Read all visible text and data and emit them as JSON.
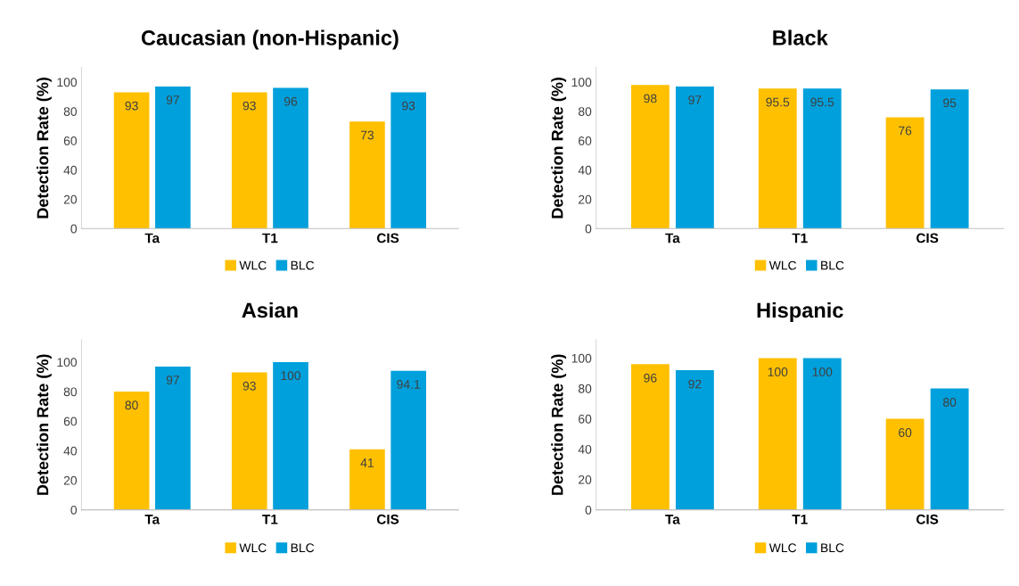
{
  "chart_data": [
    {
      "type": "bar",
      "title": "Caucasian (non-Hispanic)",
      "ylabel": "Detection Rate (%)",
      "categories": [
        "Ta",
        "T1",
        "CIS"
      ],
      "series": [
        {
          "name": "WLC",
          "color": "#ffc000",
          "values": [
            93,
            93,
            73
          ]
        },
        {
          "name": "BLC",
          "color": "#00a0dc",
          "values": [
            97,
            96,
            93
          ]
        }
      ],
      "ylim": [
        0,
        110
      ],
      "yticks": [
        0,
        20,
        40,
        60,
        80,
        100
      ],
      "grid": false,
      "legend": "bottom",
      "data_labels": true
    },
    {
      "type": "bar",
      "title": "Black",
      "ylabel": "Detection Rate (%)",
      "categories": [
        "Ta",
        "T1",
        "CIS"
      ],
      "series": [
        {
          "name": "WLC",
          "color": "#ffc000",
          "values": [
            98,
            95.5,
            76
          ]
        },
        {
          "name": "BLC",
          "color": "#00a0dc",
          "values": [
            97,
            95.5,
            95
          ]
        }
      ],
      "ylim": [
        0,
        110
      ],
      "yticks": [
        0,
        20,
        40,
        60,
        80,
        100
      ],
      "grid": false,
      "legend": "bottom",
      "data_labels": true
    },
    {
      "type": "bar",
      "title": "Asian",
      "ylabel": "Detection Rate (%)",
      "categories": [
        "Ta",
        "T1",
        "CIS"
      ],
      "series": [
        {
          "name": "WLC",
          "color": "#ffc000",
          "values": [
            80,
            93,
            41
          ]
        },
        {
          "name": "BLC",
          "color": "#00a0dc",
          "values": [
            97,
            100,
            94.1
          ]
        }
      ],
      "ylim": [
        0,
        115
      ],
      "yticks": [
        0,
        20,
        40,
        60,
        80,
        100
      ],
      "grid": false,
      "legend": "bottom",
      "data_labels": true
    },
    {
      "type": "bar",
      "title": "Hispanic",
      "ylabel": "Detection Rate (%)",
      "categories": [
        "Ta",
        "T1",
        "CIS"
      ],
      "series": [
        {
          "name": "WLC",
          "color": "#ffc000",
          "values": [
            96,
            100,
            60
          ]
        },
        {
          "name": "BLC",
          "color": "#00a0dc",
          "values": [
            92,
            100,
            80
          ]
        }
      ],
      "ylim": [
        0,
        112
      ],
      "yticks": [
        0,
        20,
        40,
        60,
        80,
        100
      ],
      "grid": false,
      "legend": "bottom",
      "data_labels": true
    }
  ]
}
